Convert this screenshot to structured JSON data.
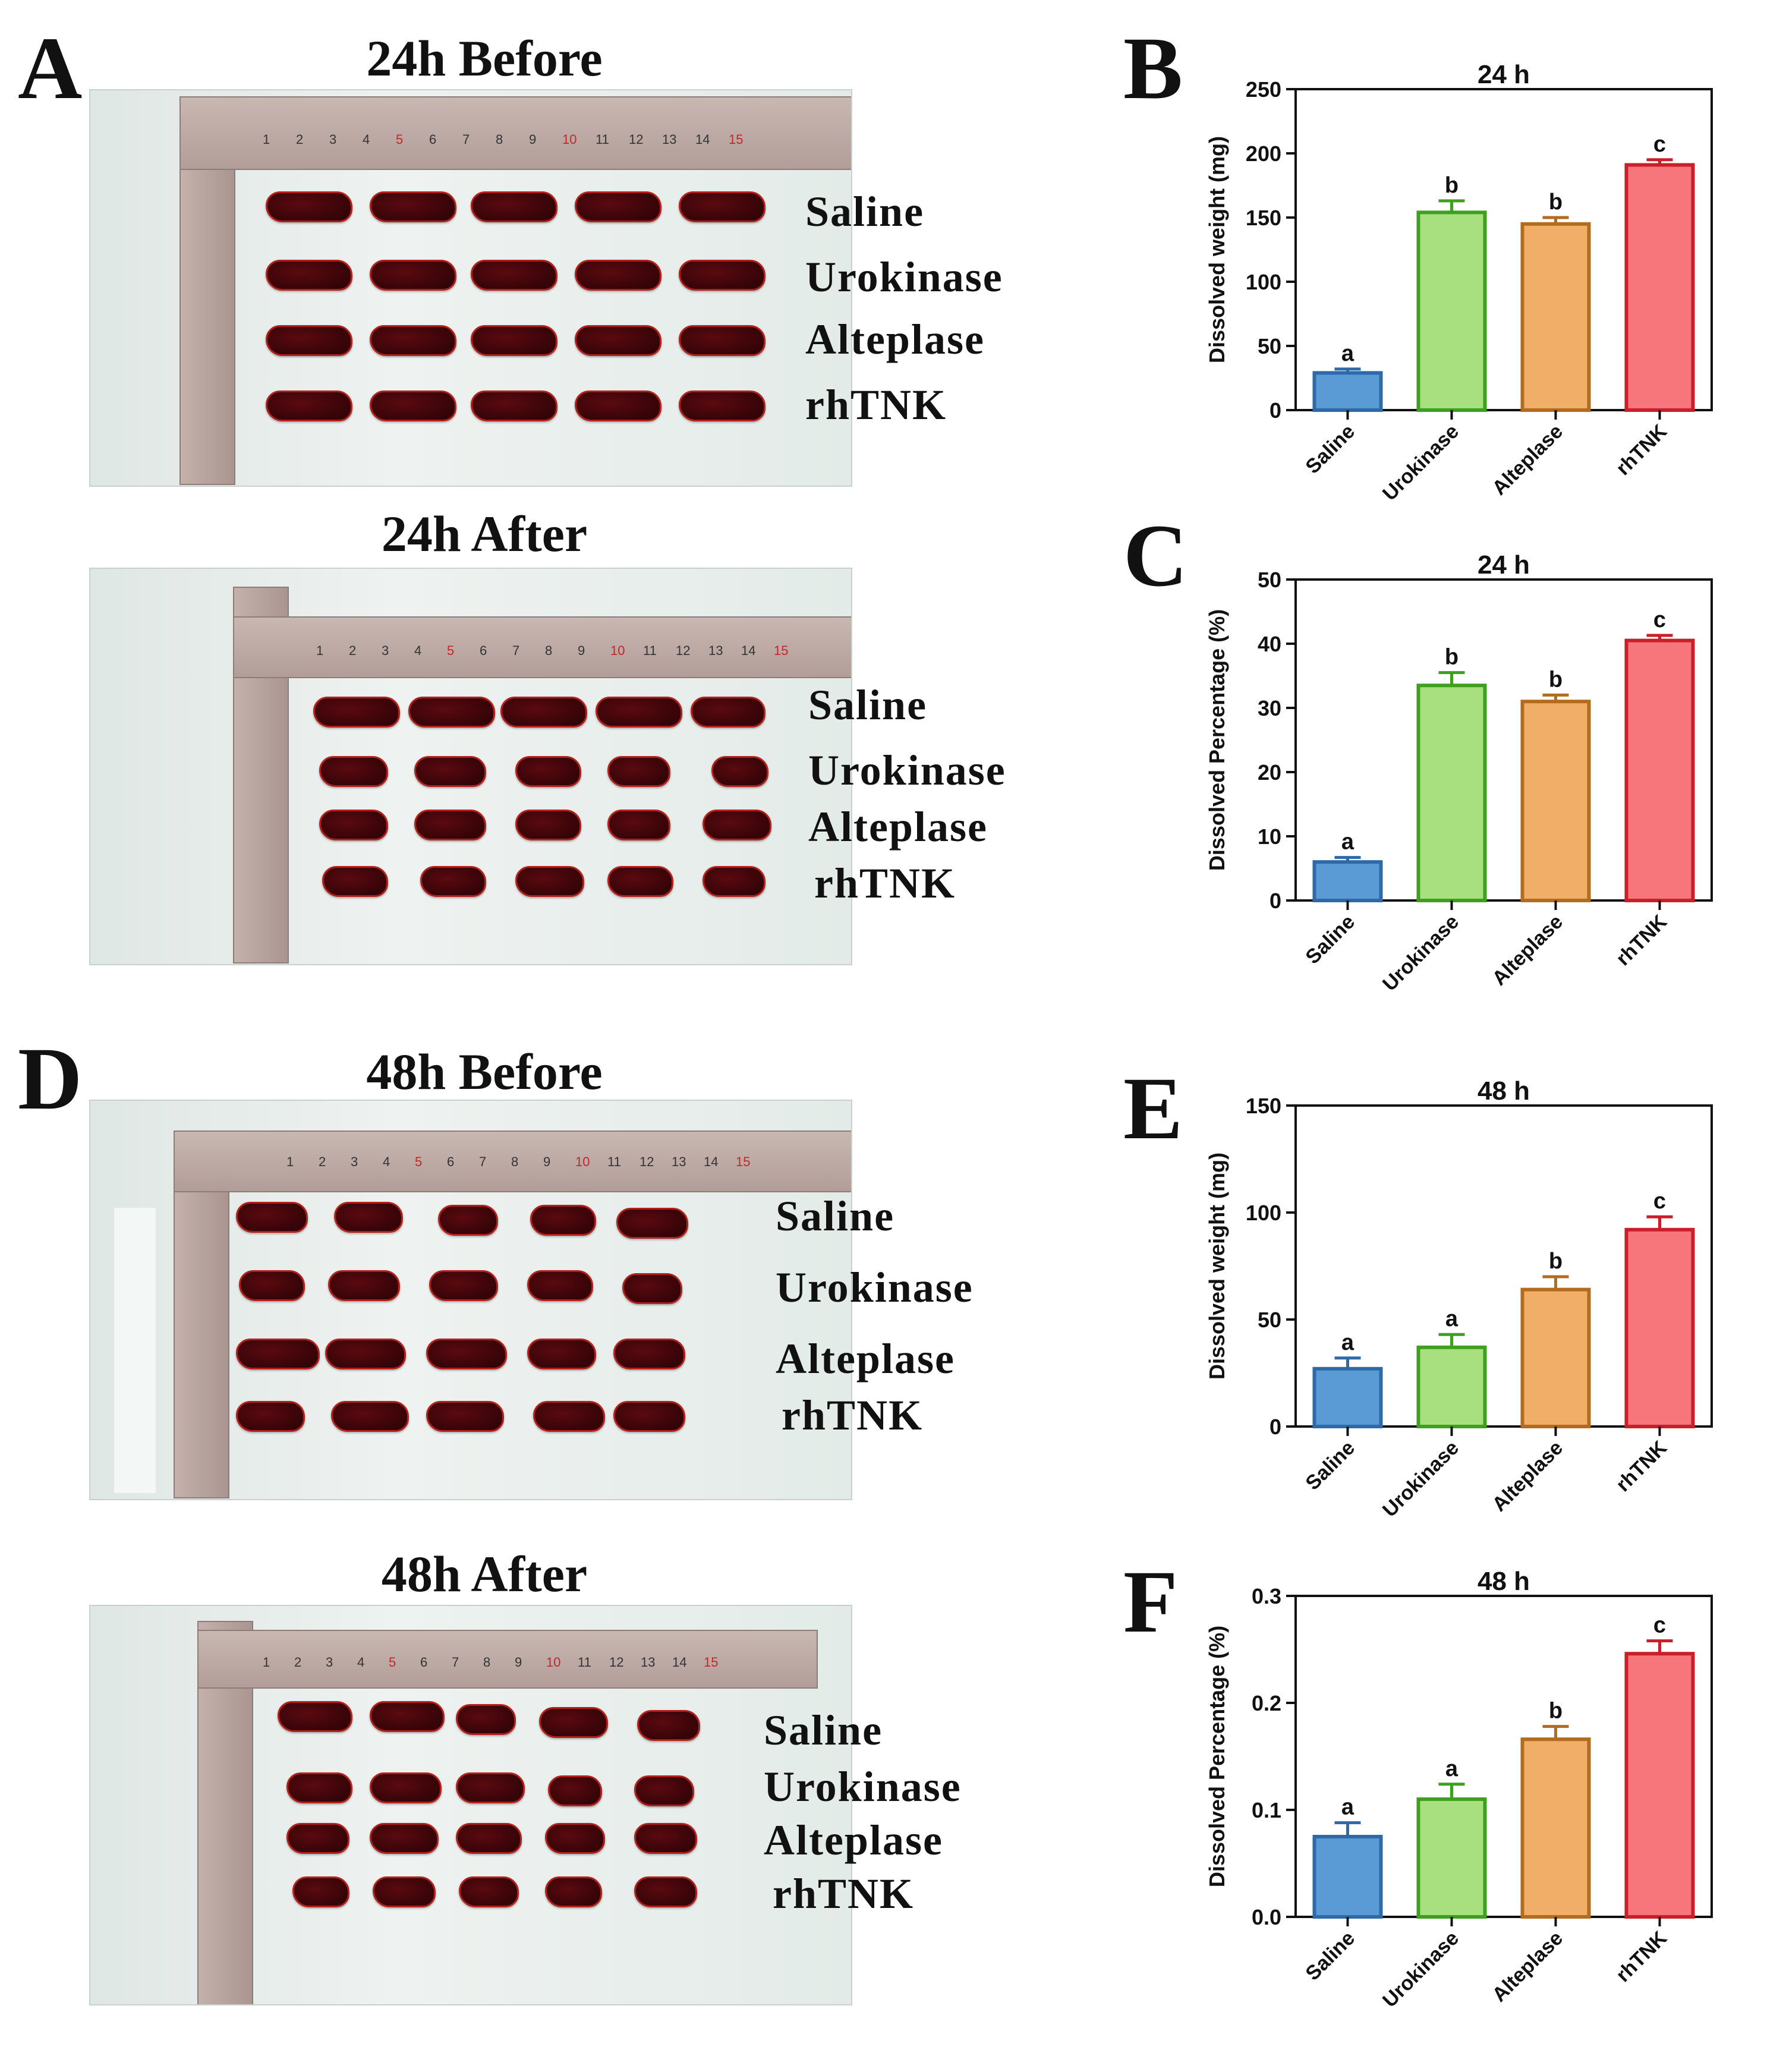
{
  "panels": {
    "A": {
      "letter": "A",
      "title_before": "24h Before",
      "title_after": "24h After"
    },
    "D": {
      "letter": "D",
      "title_before": "48h Before",
      "title_after": "48h After"
    },
    "B": {
      "letter": "B"
    },
    "C": {
      "letter": "C"
    },
    "E": {
      "letter": "E"
    },
    "F": {
      "letter": "F"
    }
  },
  "groups": [
    "Saline",
    "Urokinase",
    "Alteplase",
    "rhTNK"
  ],
  "ruler_numbers": [
    "1",
    "2",
    "3",
    "4",
    "5",
    "6",
    "7",
    "8",
    "9",
    "10",
    "11",
    "12",
    "13",
    "14",
    "15"
  ],
  "colors": {
    "Saline": {
      "fill": "#5b9bd5",
      "stroke": "#2e6aa8"
    },
    "Urokinase": {
      "fill": "#a9e07f",
      "stroke": "#3f9f1e"
    },
    "Alteplase": {
      "fill": "#f0ae68",
      "stroke": "#b36b1d"
    },
    "rhTNK": {
      "fill": "#f6767c",
      "stroke": "#c81f2a"
    }
  },
  "chart_data": [
    {
      "id": "B",
      "type": "bar",
      "title": "24 h",
      "ylabel": "Dissolved weight (mg)",
      "xlabel": "",
      "categories": [
        "Saline",
        "Urokinase",
        "Alteplase",
        "rhTNK"
      ],
      "values": [
        29,
        154,
        145,
        191
      ],
      "errors": [
        3,
        9,
        5,
        4
      ],
      "labels": [
        "a",
        "b",
        "b",
        "c"
      ],
      "ylim": [
        0,
        250
      ],
      "yticks": [
        0,
        50,
        100,
        150,
        200,
        250
      ],
      "yticklabels": [
        "0",
        "50",
        "100",
        "150",
        "200",
        "250"
      ]
    },
    {
      "id": "C",
      "type": "bar",
      "title": "24 h",
      "ylabel": "Dissolved Percentage (%)",
      "xlabel": "",
      "categories": [
        "Saline",
        "Urokinase",
        "Alteplase",
        "rhTNK"
      ],
      "values": [
        6,
        33.5,
        31,
        40.5
      ],
      "errors": [
        0.7,
        2,
        1,
        0.8
      ],
      "labels": [
        "a",
        "b",
        "b",
        "c"
      ],
      "ylim": [
        0,
        50
      ],
      "yticks": [
        0,
        10,
        20,
        30,
        40,
        50
      ],
      "yticklabels": [
        "0",
        "10",
        "20",
        "30",
        "40",
        "50"
      ]
    },
    {
      "id": "E",
      "type": "bar",
      "title": "48 h",
      "ylabel": "Dissolved weight (mg)",
      "xlabel": "",
      "categories": [
        "Saline",
        "Urokinase",
        "Alteplase",
        "rhTNK"
      ],
      "values": [
        27,
        37,
        64,
        92
      ],
      "errors": [
        5,
        6,
        6,
        6
      ],
      "labels": [
        "a",
        "a",
        "b",
        "c"
      ],
      "ylim": [
        0,
        150
      ],
      "yticks": [
        0,
        50,
        100,
        150
      ],
      "yticklabels": [
        "0",
        "50",
        "100",
        "150"
      ]
    },
    {
      "id": "F",
      "type": "bar",
      "title": "48 h",
      "ylabel": "Dissolved Percentage (%)",
      "xlabel": "",
      "categories": [
        "Saline",
        "Urokinase",
        "Alteplase",
        "rhTNK"
      ],
      "values": [
        0.075,
        0.11,
        0.166,
        0.246
      ],
      "errors": [
        0.013,
        0.014,
        0.012,
        0.012
      ],
      "labels": [
        "a",
        "a",
        "b",
        "c"
      ],
      "ylim": [
        0,
        0.3
      ],
      "yticks": [
        0,
        0.1,
        0.2,
        0.3
      ],
      "yticklabels": [
        "0.0",
        "0.1",
        "0.2",
        "0.3"
      ]
    }
  ]
}
